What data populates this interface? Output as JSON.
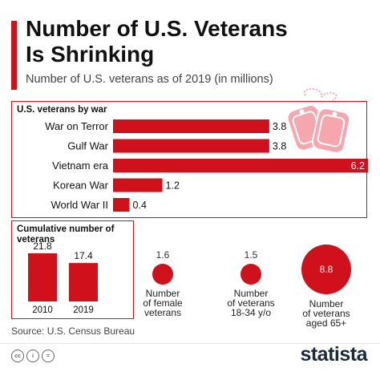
{
  "header": {
    "title_line1": "Number of U.S. Veterans",
    "title_line2": "Is Shrinking",
    "subtitle": "Number of U.S. veterans as of 2019 (in millions)"
  },
  "colors": {
    "accent": "#d0111b",
    "dogtag": "#f5a7ad"
  },
  "chart_data": [
    {
      "type": "bar",
      "orientation": "horizontal",
      "title": "U.S. veterans by war",
      "categories": [
        "War on Terror",
        "Gulf War",
        "Vietnam era",
        "Korean War",
        "World War II"
      ],
      "values": [
        3.8,
        3.8,
        6.2,
        1.2,
        0.4
      ],
      "labels": [
        "3.8",
        "3.8",
        "6.2",
        "1.2",
        "0.4"
      ],
      "xlim": [
        0,
        6.2
      ],
      "grid": false
    },
    {
      "type": "bar",
      "orientation": "vertical",
      "title": "Cumulative number of veterans",
      "categories": [
        "2010",
        "2019"
      ],
      "values": [
        21.8,
        17.4
      ],
      "labels": [
        "21.8",
        "17.4"
      ],
      "ylim": [
        0,
        21.8
      ],
      "grid": false
    }
  ],
  "stats": [
    {
      "value": 1.6,
      "value_label": "1.6",
      "label": [
        "Number",
        "of female",
        "veterans"
      ]
    },
    {
      "value": 1.5,
      "value_label": "1.5",
      "label": [
        "Number",
        "of veterans",
        "18-34 y/o"
      ]
    },
    {
      "value": 8.8,
      "value_label": "8.8",
      "label": [
        "Number",
        "of veterans",
        "aged 65+"
      ]
    }
  ],
  "footer": {
    "source": "Source: U.S. Census Bureau",
    "license_icons": [
      "cc-icon",
      "attribution-icon",
      "no-derivatives-icon"
    ],
    "license_glyphs": [
      "cc",
      "i",
      "="
    ],
    "logo": "statista"
  }
}
